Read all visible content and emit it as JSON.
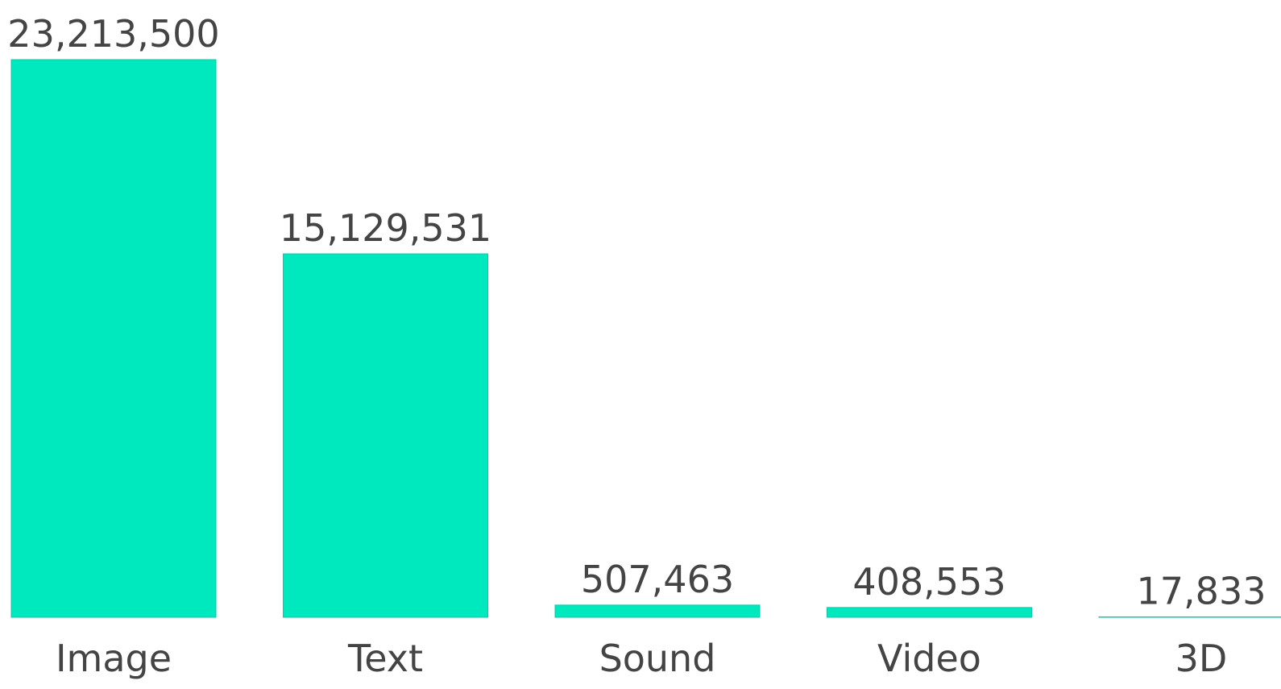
{
  "chart_data": {
    "type": "bar",
    "categories": [
      "Image",
      "Text",
      "Sound",
      "Video",
      "3D"
    ],
    "values": [
      23213500,
      15129531,
      507463,
      408553,
      17833
    ],
    "value_labels": [
      "23,213,500",
      "15,129,531",
      "507,463",
      "408,553",
      "17,833"
    ],
    "title": "",
    "xlabel": "",
    "ylabel": "",
    "ylim": [
      0,
      23213500
    ],
    "grid": false,
    "legend": "none",
    "bar_color": "#00E8BE",
    "bar_edge_color": "#10C9A6",
    "text_color": "#444444"
  }
}
